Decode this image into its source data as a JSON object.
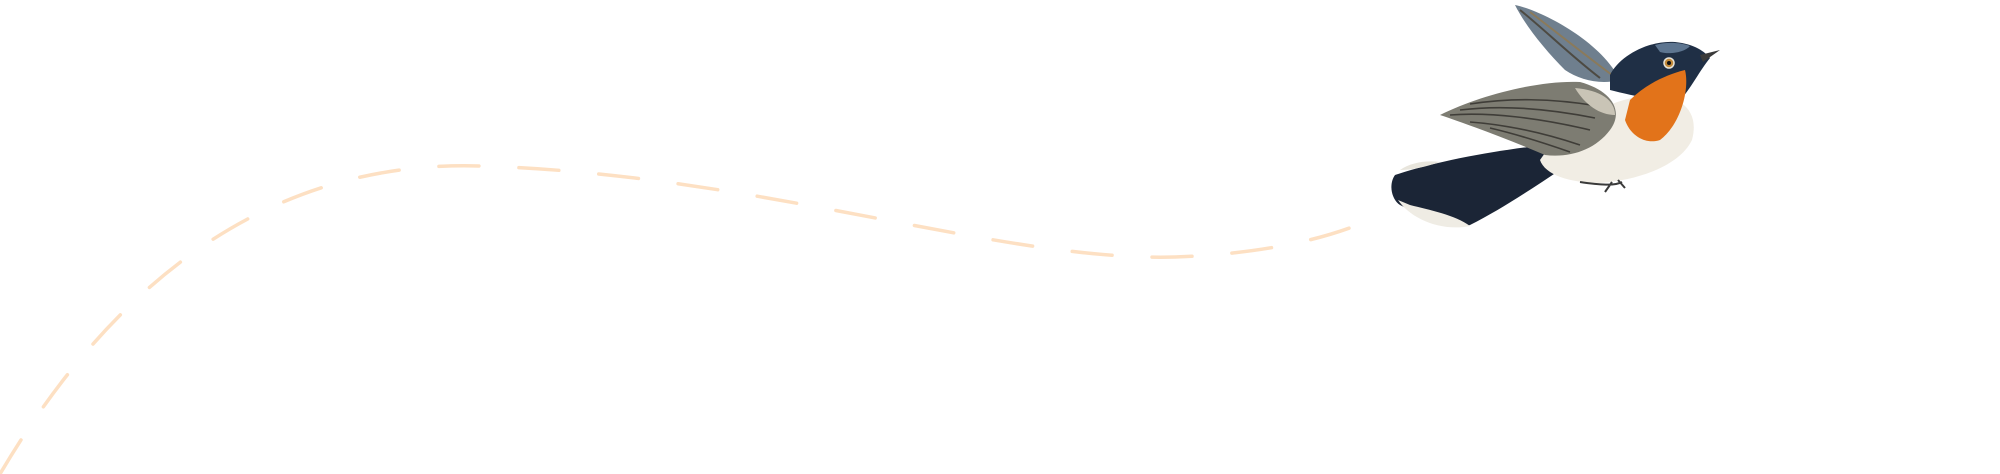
{
  "illustration": {
    "subject": "bird-icon",
    "path_style": "dashed",
    "colors": {
      "background": "#ffffff",
      "flight_path": "#fde0c3",
      "throat": "#e2731a",
      "head": "#1f2f45",
      "wing": "#7d7c72",
      "belly": "#f1ede4",
      "tail": "#1b2536"
    }
  }
}
